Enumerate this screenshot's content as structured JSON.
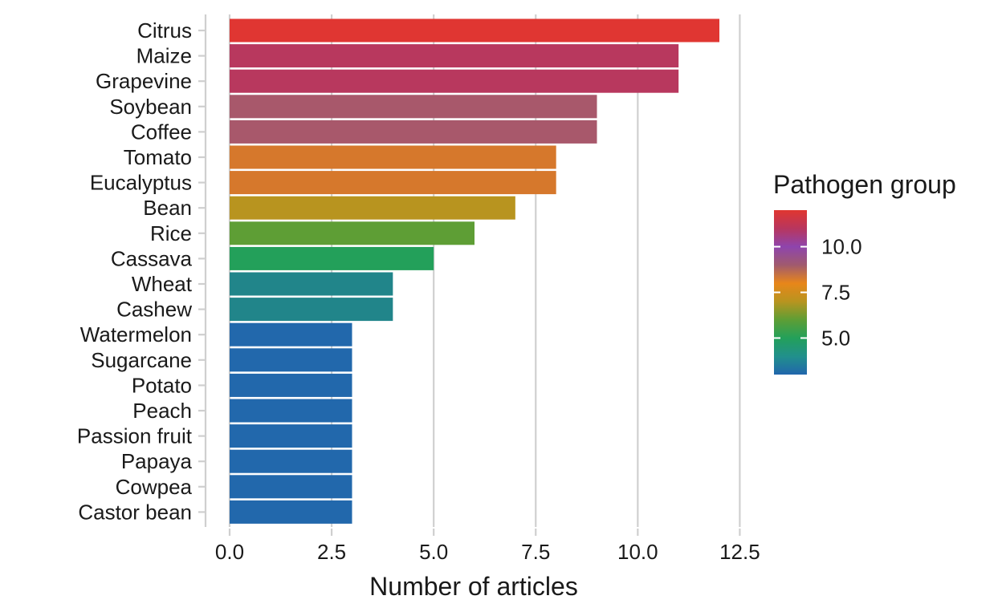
{
  "chart_data": {
    "type": "bar",
    "orientation": "horizontal",
    "xlabel": "Number of articles",
    "ylabel": "",
    "xlim": [
      0,
      12.5
    ],
    "xticks": [
      "0.0",
      "2.5",
      "5.0",
      "7.5",
      "10.0",
      "12.5"
    ],
    "grid": "vertical major gridlines",
    "categories": [
      "Citrus",
      "Maize",
      "Grapevine",
      "Soybean",
      "Coffee",
      "Tomato",
      "Eucalyptus",
      "Bean",
      "Rice",
      "Cassava",
      "Wheat",
      "Cashew",
      "Watermelon",
      "Sugarcane",
      "Potato",
      "Peach",
      "Passion fruit",
      "Papaya",
      "Cowpea",
      "Castor bean"
    ],
    "values": [
      12,
      11,
      11,
      9,
      9,
      8,
      8,
      7,
      6,
      5,
      4,
      4,
      3,
      3,
      3,
      3,
      3,
      3,
      3,
      3
    ],
    "legend": {
      "title": "Pathogen group",
      "position": "right",
      "type": "continuous colorbar",
      "ticks": [
        "10.0",
        "7.5",
        "5.0"
      ],
      "range": [
        3,
        12
      ],
      "color_stops": [
        {
          "value": 3,
          "color": "#2166ac"
        },
        {
          "value": 4,
          "color": "#21908c"
        },
        {
          "value": 5,
          "color": "#23a05a"
        },
        {
          "value": 6,
          "color": "#5e9e35"
        },
        {
          "value": 7,
          "color": "#b8941f"
        },
        {
          "value": 8,
          "color": "#e8861a"
        },
        {
          "value": 9,
          "color": "#a05a6e"
        },
        {
          "value": 10,
          "color": "#8e44ad"
        },
        {
          "value": 11,
          "color": "#b8365e"
        },
        {
          "value": 12,
          "color": "#e03630"
        }
      ]
    },
    "bar_colors": [
      "#e03632",
      "#b8385e",
      "#b8385e",
      "#a8586b",
      "#a8586b",
      "#d6782c",
      "#d6782c",
      "#b8941f",
      "#5e9e35",
      "#23a05a",
      "#21858a",
      "#21858a",
      "#2268ac",
      "#2268ac",
      "#2268ac",
      "#2268ac",
      "#2268ac",
      "#2268ac",
      "#2268ac",
      "#2268ac"
    ]
  }
}
